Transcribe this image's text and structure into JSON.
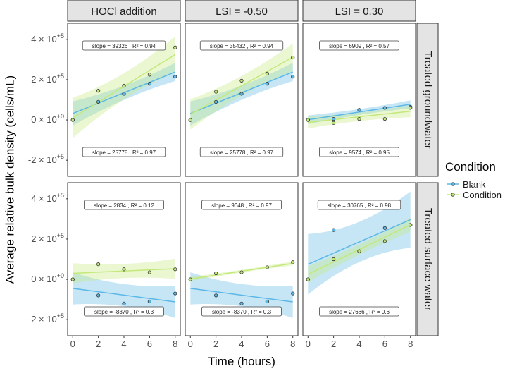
{
  "chart_data": {
    "type": "scatter",
    "ylabel": "Average relative bulk density (cells/mL)",
    "xlabel": "Time (hours)",
    "x_ticks": [
      "0",
      "2",
      "4",
      "6",
      "8"
    ],
    "y_ticks": [
      {
        "base": "-2 × 10",
        "exp": "+5",
        "value": -200000
      },
      {
        "base": "0 × 10",
        "exp": "+0",
        "value": 0
      },
      {
        "base": "2 × 10",
        "exp": "+5",
        "value": 200000
      },
      {
        "base": "4 × 10",
        "exp": "+5",
        "value": 400000
      }
    ],
    "xlim": [
      -0.4,
      8.4
    ],
    "ylim": [
      -280000,
      480000
    ],
    "col_labels": [
      "HOCl addition",
      "LSI = -0.50",
      "LSI = 0.30"
    ],
    "row_labels": [
      "Treated groundwater",
      "Treated surface water"
    ],
    "legend": {
      "title": "Condition",
      "position": "right",
      "entries": [
        {
          "label": "Blank",
          "color": "#5bb8e6"
        },
        {
          "label": "Condition",
          "color": "#c4e87a"
        }
      ]
    },
    "panels": [
      {
        "row": 0,
        "col": 0,
        "blank": {
          "x": [
            0,
            2,
            4,
            6,
            8
          ],
          "y": [
            0,
            90000,
            130000,
            180000,
            215000
          ],
          "fit": [
            32000,
            25778
          ],
          "band_half": [
            60000,
            18000,
            45000
          ]
        },
        "condition": {
          "x": [
            0,
            2,
            4,
            6,
            8
          ],
          "y": [
            0,
            145000,
            170000,
            225000,
            360000
          ],
          "fit": [
            10000,
            39326
          ],
          "band_half": [
            100000,
            35000,
            90000
          ]
        },
        "label_top": "slope = 39326 , R² = 0.94",
        "label_bottom": "slope = 25778 , R² = 0.97"
      },
      {
        "row": 0,
        "col": 1,
        "blank": {
          "x": [
            0,
            2,
            4,
            6,
            8
          ],
          "y": [
            0,
            90000,
            130000,
            180000,
            215000
          ],
          "fit": [
            32000,
            25778
          ],
          "band_half": [
            60000,
            18000,
            45000
          ]
        },
        "condition": {
          "x": [
            0,
            2,
            4,
            6,
            8
          ],
          "y": [
            0,
            140000,
            195000,
            230000,
            310000
          ],
          "fit": [
            28000,
            35432
          ],
          "band_half": [
            75000,
            26000,
            68000
          ]
        },
        "label_top": "slope = 35432 , R² = 0.94",
        "label_bottom": "slope = 25778 , R² = 0.97"
      },
      {
        "row": 0,
        "col": 2,
        "blank": {
          "x": [
            0,
            2,
            4,
            6,
            8
          ],
          "y": [
            0,
            5000,
            50000,
            60000,
            65000
          ],
          "fit": [
            1000,
            9574
          ],
          "band_half": [
            22000,
            8000,
            20000
          ]
        },
        "condition": {
          "x": [
            0,
            2,
            4,
            6,
            8
          ],
          "y": [
            0,
            -15000,
            5000,
            5000,
            60000
          ],
          "fit": [
            -12000,
            6909
          ],
          "band_half": [
            30000,
            12000,
            30000
          ]
        },
        "label_top": "slope = 6909 , R² = 0.57",
        "label_bottom": "slope = 9574 , R² = 0.95"
      },
      {
        "row": 1,
        "col": 0,
        "blank": {
          "x": [
            0,
            2,
            4,
            6,
            8
          ],
          "y": [
            0,
            -80000,
            -120000,
            -110000,
            -70000
          ],
          "fit": [
            -45000,
            -8370
          ],
          "band_half": [
            80000,
            30000,
            80000
          ]
        },
        "condition": {
          "x": [
            0,
            2,
            4,
            6,
            8
          ],
          "y": [
            0,
            75000,
            50000,
            35000,
            50000
          ],
          "fit": [
            30000,
            2834
          ],
          "band_half": [
            50000,
            20000,
            50000
          ]
        },
        "label_top": "slope = 2834 , R² = 0.12",
        "label_bottom": "slope = -8370 , R² = 0.3"
      },
      {
        "row": 1,
        "col": 1,
        "blank": {
          "x": [
            0,
            2,
            4,
            6,
            8
          ],
          "y": [
            0,
            -80000,
            -120000,
            -110000,
            -70000
          ],
          "fit": [
            -45000,
            -8370
          ],
          "band_half": [
            80000,
            30000,
            80000
          ]
        },
        "condition": {
          "x": [
            0,
            2,
            4,
            6,
            8
          ],
          "y": [
            0,
            30000,
            35000,
            60000,
            85000
          ],
          "fit": [
            2000,
            9648
          ],
          "band_half": [
            10000,
            4000,
            10000
          ]
        },
        "label_top": "slope = 9648 , R² = 0.97",
        "label_bottom": "slope = -8370 , R² = 0.3"
      },
      {
        "row": 1,
        "col": 2,
        "blank": {
          "x": [
            0,
            2,
            4,
            6,
            8
          ],
          "y": [
            0,
            245000,
            140000,
            255000,
            270000
          ],
          "fit": [
            75000,
            27666
          ],
          "band_half": [
            150000,
            55000,
            140000
          ]
        },
        "condition": {
          "x": [
            0,
            2,
            4,
            6,
            8
          ],
          "y": [
            0,
            100000,
            140000,
            190000,
            270000
          ],
          "fit": [
            25000,
            30765
          ],
          "band_half": [
            40000,
            14000,
            35000
          ]
        },
        "label_top": "slope = 30765 , R² = 0.98",
        "label_bottom": "slope = 27666 , R² = 0.6"
      }
    ]
  }
}
